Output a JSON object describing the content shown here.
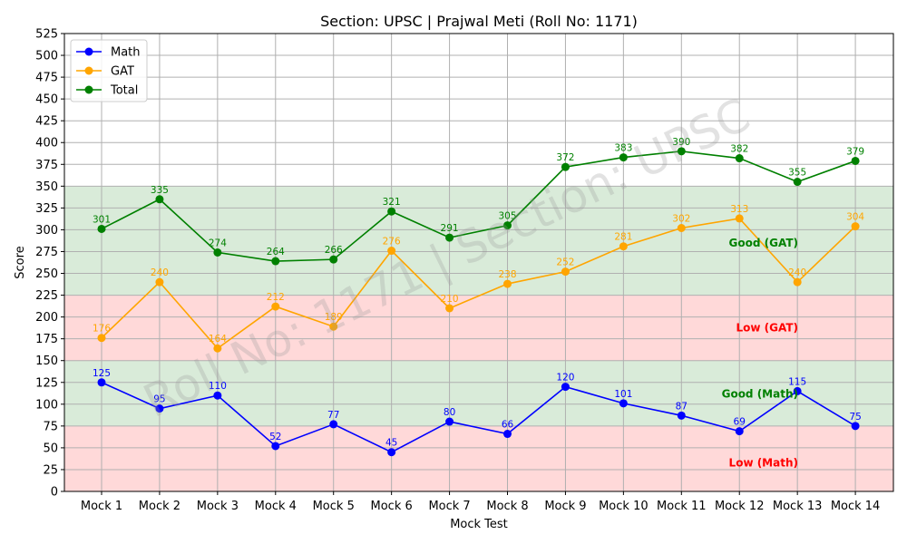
{
  "chart_data": {
    "type": "line",
    "title": "Section: UPSC | Prajwal Meti (Roll No: 1171)",
    "xlabel": "Mock Test",
    "ylabel": "Score",
    "ylim": [
      0,
      525
    ],
    "ytick_step": 25,
    "grid": true,
    "legend_position": "top-left",
    "watermark": "Roll No: 1171 | Section: UPSC",
    "categories": [
      "Mock 1",
      "Mock 2",
      "Mock 3",
      "Mock 4",
      "Mock 5",
      "Mock 6",
      "Mock 7",
      "Mock 8",
      "Mock 9",
      "Mock 10",
      "Mock 11",
      "Mock 12",
      "Mock 13",
      "Mock 14"
    ],
    "series": [
      {
        "name": "Math",
        "color": "#0000ff",
        "values": [
          125,
          95,
          110,
          52,
          77,
          45,
          80,
          66,
          120,
          101,
          87,
          69,
          115,
          75
        ]
      },
      {
        "name": "GAT",
        "color": "#ffa500",
        "values": [
          176,
          240,
          164,
          212,
          189,
          276,
          210,
          238,
          252,
          281,
          302,
          313,
          240,
          304
        ]
      },
      {
        "name": "Total",
        "color": "#008000",
        "values": [
          301,
          335,
          274,
          264,
          266,
          321,
          291,
          305,
          372,
          383,
          390,
          382,
          355,
          379
        ]
      }
    ],
    "bands": [
      {
        "label": "Low (Math)",
        "from": 0,
        "to": 75,
        "fill": "#ffd9d9",
        "text_color": "#ff0000"
      },
      {
        "label": "Good (Math)",
        "from": 75,
        "to": 150,
        "fill": "#d9ebd9",
        "text_color": "#008000"
      },
      {
        "label": "Low (GAT)",
        "from": 150,
        "to": 225,
        "fill": "#ffd9d9",
        "text_color": "#ff0000"
      },
      {
        "label": "Good (GAT)",
        "from": 225,
        "to": 350,
        "fill": "#d9ebd9",
        "text_color": "#008000"
      }
    ]
  }
}
